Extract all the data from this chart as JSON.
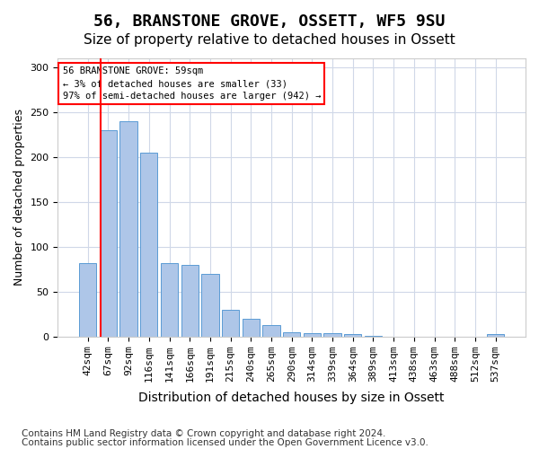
{
  "title1": "56, BRANSTONE GROVE, OSSETT, WF5 9SU",
  "title2": "Size of property relative to detached houses in Ossett",
  "xlabel": "Distribution of detached houses by size in Ossett",
  "ylabel": "Number of detached properties",
  "categories": [
    "42sqm",
    "67sqm",
    "92sqm",
    "116sqm",
    "141sqm",
    "166sqm",
    "191sqm",
    "215sqm",
    "240sqm",
    "265sqm",
    "290sqm",
    "314sqm",
    "339sqm",
    "364sqm",
    "389sqm",
    "413sqm",
    "438sqm",
    "463sqm",
    "488sqm",
    "512sqm",
    "537sqm"
  ],
  "values": [
    82,
    230,
    240,
    205,
    82,
    80,
    70,
    30,
    20,
    13,
    5,
    4,
    4,
    3,
    1,
    0,
    0,
    0,
    0,
    0,
    3
  ],
  "bar_color": "#aec6e8",
  "bar_edge_color": "#5b9bd5",
  "annotation_box_text": "56 BRANSTONE GROVE: 59sqm\n← 3% of detached houses are smaller (33)\n97% of semi-detached houses are larger (942) →",
  "annotation_box_color": "white",
  "annotation_box_edge_color": "red",
  "highlight_line_color": "red",
  "footnote1": "Contains HM Land Registry data © Crown copyright and database right 2024.",
  "footnote2": "Contains public sector information licensed under the Open Government Licence v3.0.",
  "ylim": [
    0,
    310
  ],
  "yticks": [
    0,
    50,
    100,
    150,
    200,
    250,
    300
  ],
  "title1_fontsize": 13,
  "title2_fontsize": 11,
  "xlabel_fontsize": 10,
  "ylabel_fontsize": 9,
  "tick_fontsize": 8,
  "footnote_fontsize": 7.5,
  "bg_color": "#ffffff",
  "grid_color": "#d0d8e8"
}
